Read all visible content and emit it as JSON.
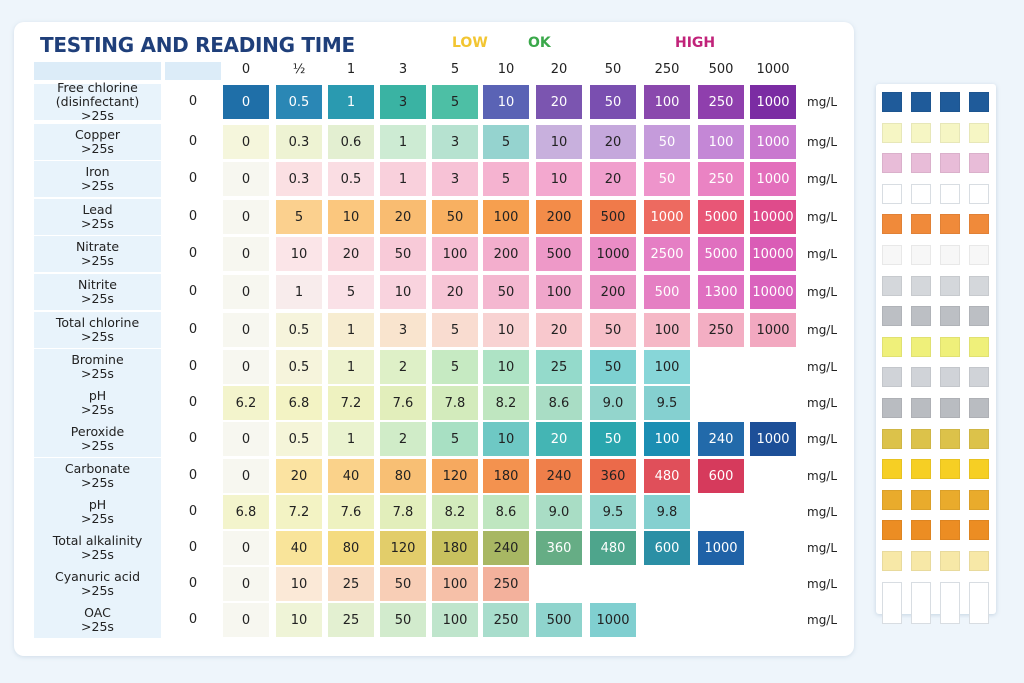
{
  "title": "TESTING AND READING TIME",
  "legend": [
    {
      "label": "LOW",
      "color": "#f2c531"
    },
    {
      "label": "OK",
      "color": "#3aa84a"
    },
    {
      "label": "HIGH",
      "color": "#c1237a"
    }
  ],
  "header_values": [
    "0",
    "½",
    "1",
    "3",
    "5",
    "10",
    "20",
    "50",
    "250",
    "500",
    "1000"
  ],
  "unit": "mg/L",
  "rows": [
    {
      "name": "Free chlorine (disinfectant)",
      "time": ">25s",
      "blank": "0",
      "cells": [
        [
          "0",
          "#1f6fa8"
        ],
        [
          "0.5",
          "#2a87b5"
        ],
        [
          "1",
          "#2a9ab0"
        ],
        [
          "3",
          "#3ab3a3"
        ],
        [
          "5",
          "#4dbfa5"
        ],
        [
          "10",
          "#5a63b5"
        ],
        [
          "20",
          "#7b55b0"
        ],
        [
          "50",
          "#7a4fb0"
        ],
        [
          "100",
          "#8a48ad"
        ],
        [
          "250",
          "#8f3fad"
        ],
        [
          "1000",
          "#7b2ca3"
        ]
      ]
    },
    {
      "name": "Copper",
      "time": ">25s",
      "blank": "0",
      "cells": [
        [
          "0",
          "#f5f6dc"
        ],
        [
          "0.3",
          "#eef3d3"
        ],
        [
          "0.6",
          "#e3efd1"
        ],
        [
          "1",
          "#cdebd3"
        ],
        [
          "3",
          "#b6e2d0"
        ],
        [
          "5",
          "#95d3cf"
        ],
        [
          "10",
          "#c8b0dd"
        ],
        [
          "20",
          "#c5a8dc"
        ],
        [
          "50",
          "#c59bdb"
        ],
        [
          "100",
          "#c487d6"
        ],
        [
          "1000",
          "#c978cf"
        ]
      ]
    },
    {
      "name": "Iron",
      "time": ">25s",
      "blank": "0",
      "cells": [
        [
          "0",
          "#f7f7f0"
        ],
        [
          "0.3",
          "#fbe0e3"
        ],
        [
          "0.5",
          "#fadde3"
        ],
        [
          "1",
          "#f9d0dc"
        ],
        [
          "3",
          "#f7c2d6"
        ],
        [
          "5",
          "#f5b3d0"
        ],
        [
          "10",
          "#f3a8cf"
        ],
        [
          "20",
          "#f09fcd"
        ],
        [
          "50",
          "#ee94cb"
        ],
        [
          "250",
          "#ea83c3"
        ],
        [
          "1000",
          "#e36fbc"
        ]
      ]
    },
    {
      "name": "Lead",
      "time": ">25s",
      "blank": "0",
      "cells": [
        [
          "0",
          "#f7f7f0"
        ],
        [
          "5",
          "#fbd08e"
        ],
        [
          "10",
          "#fbc77e"
        ],
        [
          "20",
          "#f9bc71"
        ],
        [
          "50",
          "#f8b061"
        ],
        [
          "100",
          "#f69f4f"
        ],
        [
          "200",
          "#f38c49"
        ],
        [
          "500",
          "#f07a4a"
        ],
        [
          "1000",
          "#ed6a60"
        ],
        [
          "5000",
          "#e85676"
        ],
        [
          "10000",
          "#df4b8b"
        ]
      ]
    },
    {
      "name": "Nitrate",
      "time": ">25s",
      "blank": "0",
      "cells": [
        [
          "0",
          "#f7f7f0"
        ],
        [
          "10",
          "#fbe5e8"
        ],
        [
          "20",
          "#fad8df"
        ],
        [
          "50",
          "#f8cad8"
        ],
        [
          "100",
          "#f6bdd3"
        ],
        [
          "200",
          "#f3aecd"
        ],
        [
          "500",
          "#ee99c8"
        ],
        [
          "1000",
          "#ea8cc5"
        ],
        [
          "2500",
          "#e57ec4"
        ],
        [
          "5000",
          "#e06fbf"
        ],
        [
          "10000",
          "#da5cb6"
        ]
      ]
    },
    {
      "name": "Nitrite",
      "time": ">25s",
      "blank": "0",
      "cells": [
        [
          "0",
          "#f7f7f0"
        ],
        [
          "1",
          "#f8ecec"
        ],
        [
          "5",
          "#fae1e7"
        ],
        [
          "10",
          "#f9d3de"
        ],
        [
          "20",
          "#f7c5d6"
        ],
        [
          "50",
          "#f4b7d0"
        ],
        [
          "100",
          "#f0a6cb"
        ],
        [
          "200",
          "#eb95c6"
        ],
        [
          "500",
          "#e57fc3"
        ],
        [
          "1300",
          "#e070c1"
        ],
        [
          "10000",
          "#da62bd"
        ]
      ]
    },
    {
      "name": "Total chlorine",
      "time": ">25s",
      "blank": "0",
      "cells": [
        [
          "0",
          "#f7f7f0"
        ],
        [
          "0.5",
          "#f6f4dc"
        ],
        [
          "1",
          "#f7edd1"
        ],
        [
          "3",
          "#f9e4ce"
        ],
        [
          "5",
          "#f9dcd0"
        ],
        [
          "10",
          "#f8d2d2"
        ],
        [
          "20",
          "#f8c8cd"
        ],
        [
          "50",
          "#f7c0c9"
        ],
        [
          "100",
          "#f5b7c6"
        ],
        [
          "250",
          "#f3aec3"
        ],
        [
          "1000",
          "#f2a8c0"
        ]
      ]
    },
    {
      "name": "Bromine",
      "time": ">25s",
      "blank": "0",
      "cells": [
        [
          "0",
          "#f7f7f0"
        ],
        [
          "0.5",
          "#f6f4dc"
        ],
        [
          "1",
          "#eef3cf"
        ],
        [
          "2",
          "#def0c7"
        ],
        [
          "5",
          "#c6eac2"
        ],
        [
          "10",
          "#aee3c5"
        ],
        [
          "25",
          "#94dacb"
        ],
        [
          "50",
          "#7dd1d1"
        ],
        [
          "100",
          "#87d6d8"
        ]
      ]
    },
    {
      "name": "pH",
      "time": ">25s",
      "blank": "0",
      "cells": [
        [
          "6.2",
          "#f3f4cc"
        ],
        [
          "6.8",
          "#f3f3c4"
        ],
        [
          "7.2",
          "#eef2c0"
        ],
        [
          "7.6",
          "#e2eebb"
        ],
        [
          "7.8",
          "#d3ebbc"
        ],
        [
          "8.2",
          "#bfe6c0"
        ],
        [
          "8.6",
          "#a9ddc5"
        ],
        [
          "9.0",
          "#93d5cc"
        ],
        [
          "9.5",
          "#85d0d0"
        ]
      ]
    },
    {
      "name": "Peroxide",
      "time": ">25s",
      "blank": "0",
      "cells": [
        [
          "0",
          "#f7f7f0"
        ],
        [
          "0.5",
          "#f5f5d9"
        ],
        [
          "1",
          "#eaf3cf"
        ],
        [
          "2",
          "#d0ecc8"
        ],
        [
          "5",
          "#a8e0c3"
        ],
        [
          "10",
          "#6ec8c4"
        ],
        [
          "20",
          "#44b5b4"
        ],
        [
          "50",
          "#2aa6ae"
        ],
        [
          "100",
          "#1b8eb3"
        ],
        [
          "240",
          "#226aaa"
        ],
        [
          "1000",
          "#1d4f98"
        ]
      ]
    },
    {
      "name": "Carbonate",
      "time": ">25s",
      "blank": "0",
      "cells": [
        [
          "0",
          "#f7f7f0"
        ],
        [
          "20",
          "#fbe3a1"
        ],
        [
          "40",
          "#fad28a"
        ],
        [
          "80",
          "#f8bf74"
        ],
        [
          "120",
          "#f6a95f"
        ],
        [
          "180",
          "#f3924f"
        ],
        [
          "240",
          "#ef7f4a"
        ],
        [
          "360",
          "#eb6a4a"
        ],
        [
          "480",
          "#e04f5a"
        ],
        [
          "600",
          "#d63a5c"
        ]
      ]
    },
    {
      "name": "pH",
      "time": ">25s",
      "blank": "0",
      "cells": [
        [
          "6.8",
          "#f3f4cc"
        ],
        [
          "7.2",
          "#f3f3c4"
        ],
        [
          "7.6",
          "#eef2c0"
        ],
        [
          "7.8",
          "#e2eebb"
        ],
        [
          "8.2",
          "#d3ebbc"
        ],
        [
          "8.6",
          "#bfe6c0"
        ],
        [
          "9.0",
          "#a9ddc5"
        ],
        [
          "9.5",
          "#93d5cc"
        ],
        [
          "9.8",
          "#85d0d0"
        ]
      ]
    },
    {
      "name": "Total alkalinity",
      "time": ">25s",
      "blank": "0",
      "cells": [
        [
          "0",
          "#f7f7f0"
        ],
        [
          "40",
          "#f9e49a"
        ],
        [
          "80",
          "#f4db80"
        ],
        [
          "120",
          "#e2cd6a"
        ],
        [
          "180",
          "#c8c15e"
        ],
        [
          "240",
          "#a8b763"
        ],
        [
          "360",
          "#66ad85"
        ],
        [
          "480",
          "#4ea58c"
        ],
        [
          "600",
          "#2b8fa5"
        ],
        [
          "1000",
          "#1f62a7"
        ]
      ]
    },
    {
      "name": "Cyanuric acid",
      "time": ">25s",
      "blank": "0",
      "cells": [
        [
          "0",
          "#f7f7f0"
        ],
        [
          "10",
          "#fbe9d7"
        ],
        [
          "25",
          "#f9dbc5"
        ],
        [
          "50",
          "#f8ceb6"
        ],
        [
          "100",
          "#f6c0a8"
        ],
        [
          "250",
          "#f3b19c"
        ]
      ]
    },
    {
      "name": "OAC",
      "time": ">25s",
      "blank": "0",
      "cells": [
        [
          "0",
          "#f7f7f0"
        ],
        [
          "10",
          "#eff4d7"
        ],
        [
          "25",
          "#e3f0d1"
        ],
        [
          "50",
          "#d2ebcd"
        ],
        [
          "100",
          "#bfe5cc"
        ],
        [
          "250",
          "#a8ddcc"
        ],
        [
          "500",
          "#8fd4cd"
        ],
        [
          "1000",
          "#80cfd0"
        ]
      ]
    }
  ],
  "strip_colors": [
    "#1f5b9a",
    "#f6f6c4",
    "#e8bcd8",
    "#ffffff",
    "#f08a3a",
    "#f7f7f7",
    "#d4d7db",
    "#bcbfc4",
    "#eff07a",
    "#d0d3d8",
    "#b9bcc1",
    "#dcc24a",
    "#f6cf24",
    "#e9ab2c",
    "#ec8d23",
    "#f7e8a7",
    "#ffffff"
  ]
}
